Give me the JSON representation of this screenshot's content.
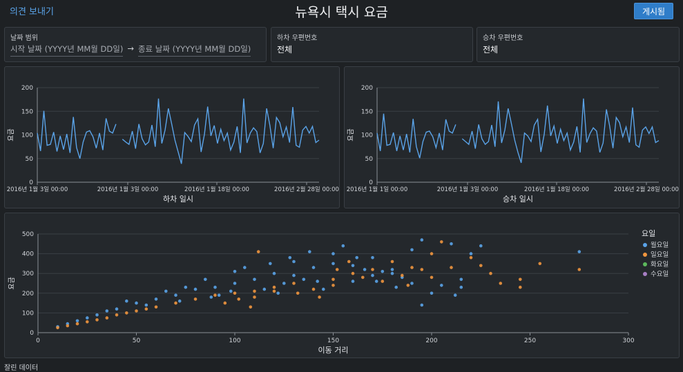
{
  "header": {
    "feedback_link": "의견 보내기",
    "title": "뉴욕시 택시 요금",
    "publish_button": "게시됨"
  },
  "filters": {
    "date_range": {
      "label": "날짜 범위",
      "start_placeholder": "시작 날짜 (YYYY년 MM월 DD일)",
      "arrow": "→",
      "end_placeholder": "종료 날짜 (YYYY년 MM월 DD일)"
    },
    "dropoff_zip": {
      "label": "하차 우편번호",
      "value": "전체"
    },
    "pickup_zip": {
      "label": "승차 우편번호",
      "value": "전체"
    }
  },
  "colors": {
    "line": "#5aa3e8",
    "monday": "#5aa3e8",
    "sunday": "#f0953e",
    "tuesday": "#5cb85c",
    "wednesday": "#a77ec4",
    "background": "#1e2124",
    "panel": "#24282c"
  },
  "chart_data": [
    {
      "type": "line",
      "xlabel": "하차 일시",
      "ylabel": "요금",
      "ylim": [
        0,
        200
      ],
      "yticks": [
        0,
        50,
        100,
        150,
        200
      ],
      "xtick_labels": [
        "2016년 1월 3일 00:00",
        "2016년 1월 3일 00:00",
        "2016년 1월 18일 00:00",
        "2016년 2월 28일 00:00"
      ],
      "grid": true,
      "series": [
        {
          "values": [
            104,
            66,
            151,
            78,
            80,
            106,
            65,
            98,
            69,
            102,
            62,
            138,
            73,
            50,
            85,
            106,
            109,
            96,
            72,
            104,
            68,
            135,
            108,
            104,
            123,
            null,
            91,
            85,
            80,
            108,
            71,
            123,
            92,
            79,
            85,
            121,
            75,
            177,
            82,
            110,
            156,
            124,
            89,
            64,
            39,
            105,
            97,
            86,
            121,
            134,
            64,
            101,
            160,
            98,
            120,
            82,
            112,
            88,
            104,
            68,
            85,
            118,
            62,
            177,
            83,
            104,
            115,
            107,
            62,
            82,
            156,
            120,
            72,
            137,
            126,
            96,
            117,
            84,
            159,
            78,
            74,
            110,
            118,
            104,
            118,
            84,
            89
          ]
        }
      ]
    },
    {
      "type": "line",
      "xlabel": "승차 일시",
      "ylabel": "요금",
      "ylim": [
        0,
        200
      ],
      "yticks": [
        0,
        50,
        100,
        150,
        200
      ],
      "xtick_labels": [
        "2016년 1월 1일 00:00",
        "2016년 1월 3일 00:00",
        "2016년 1월 18일 00:00",
        "2016년 2월 28일 00:00"
      ],
      "grid": true,
      "series": [
        {
          "values": [
            104,
            66,
            145,
            78,
            80,
            105,
            66,
            98,
            68,
            102,
            63,
            134,
            75,
            51,
            86,
            106,
            108,
            96,
            73,
            104,
            68,
            133,
            108,
            104,
            122,
            null,
            92,
            86,
            80,
            108,
            71,
            122,
            92,
            80,
            86,
            121,
            75,
            171,
            83,
            110,
            156,
            124,
            89,
            63,
            41,
            104,
            98,
            86,
            121,
            133,
            64,
            101,
            162,
            98,
            119,
            82,
            112,
            88,
            104,
            68,
            85,
            118,
            63,
            177,
            84,
            103,
            115,
            108,
            63,
            83,
            154,
            119,
            72,
            137,
            126,
            96,
            117,
            84,
            158,
            79,
            74,
            110,
            117,
            103,
            117,
            84,
            88
          ]
        }
      ]
    },
    {
      "type": "scatter",
      "xlabel": "이동 거리",
      "ylabel": "요금",
      "xlim": [
        0,
        300
      ],
      "ylim": [
        0,
        500
      ],
      "xticks": [
        0,
        50,
        100,
        150,
        200,
        250,
        300
      ],
      "yticks": [
        0,
        100,
        200,
        300,
        400,
        500
      ],
      "grid": true,
      "legend": {
        "title": "요일",
        "position": "right"
      },
      "series": [
        {
          "name": "월요일",
          "color": "#5aa3e8",
          "points": [
            [
              10,
              30
            ],
            [
              20,
              60
            ],
            [
              30,
              90
            ],
            [
              40,
              120
            ],
            [
              50,
              150
            ],
            [
              55,
              140
            ],
            [
              60,
              170
            ],
            [
              70,
              190
            ],
            [
              80,
              220
            ],
            [
              90,
              230
            ],
            [
              100,
              250
            ],
            [
              110,
              270
            ],
            [
              120,
              300
            ],
            [
              130,
              290
            ],
            [
              140,
              330
            ],
            [
              150,
              350
            ],
            [
              160,
              340
            ],
            [
              170,
              380
            ],
            [
              180,
              320
            ],
            [
              190,
              420
            ],
            [
              195,
              470
            ],
            [
              210,
              450
            ],
            [
              275,
              410
            ],
            [
              155,
              440
            ],
            [
              150,
              400
            ],
            [
              130,
              360
            ],
            [
              105,
              330
            ],
            [
              100,
              310
            ],
            [
              85,
              270
            ],
            [
              75,
              230
            ],
            [
              65,
              210
            ],
            [
              45,
              160
            ],
            [
              35,
              110
            ],
            [
              25,
              75
            ],
            [
              15,
              45
            ],
            [
              115,
              220
            ],
            [
              125,
              250
            ],
            [
              135,
              270
            ],
            [
              145,
              220
            ],
            [
              160,
              260
            ],
            [
              170,
              290
            ],
            [
              175,
              310
            ],
            [
              180,
              300
            ],
            [
              185,
              280
            ],
            [
              190,
              250
            ],
            [
              200,
              200
            ],
            [
              205,
              240
            ],
            [
              212,
              190
            ],
            [
              215,
              230
            ],
            [
              220,
              400
            ],
            [
              225,
              440
            ],
            [
              215,
              270
            ],
            [
              195,
              140
            ],
            [
              92,
              190
            ],
            [
              98,
              210
            ],
            [
              72,
              160
            ],
            [
              88,
              180
            ],
            [
              122,
              200
            ],
            [
              142,
              260
            ],
            [
              118,
              350
            ],
            [
              128,
              380
            ],
            [
              138,
              410
            ],
            [
              162,
              380
            ],
            [
              166,
              320
            ],
            [
              172,
              260
            ],
            [
              182,
              230
            ]
          ]
        },
        {
          "name": "일요일",
          "color": "#f0953e",
          "points": [
            [
              10,
              25
            ],
            [
              15,
              35
            ],
            [
              20,
              45
            ],
            [
              25,
              55
            ],
            [
              30,
              65
            ],
            [
              35,
              75
            ],
            [
              40,
              90
            ],
            [
              45,
              100
            ],
            [
              50,
              110
            ],
            [
              55,
              120
            ],
            [
              60,
              130
            ],
            [
              70,
              150
            ],
            [
              80,
              170
            ],
            [
              90,
              190
            ],
            [
              100,
              200
            ],
            [
              110,
              210
            ],
            [
              120,
              230
            ],
            [
              130,
              250
            ],
            [
              140,
              220
            ],
            [
              150,
              270
            ],
            [
              160,
              300
            ],
            [
              170,
              320
            ],
            [
              180,
              360
            ],
            [
              185,
              290
            ],
            [
              190,
              330
            ],
            [
              195,
              320
            ],
            [
              200,
              280
            ],
            [
              205,
              460
            ],
            [
              210,
              330
            ],
            [
              220,
              380
            ],
            [
              225,
              340
            ],
            [
              230,
              300
            ],
            [
              235,
              250
            ],
            [
              245,
              270
            ],
            [
              255,
              350
            ],
            [
              275,
              320
            ],
            [
              245,
              230
            ],
            [
              200,
              400
            ],
            [
              150,
              240
            ],
            [
              175,
              260
            ],
            [
              165,
              280
            ],
            [
              110,
              180
            ],
            [
              120,
              210
            ],
            [
              95,
              150
            ],
            [
              102,
              170
            ],
            [
              132,
              200
            ],
            [
              143,
              180
            ],
            [
              152,
              320
            ],
            [
              158,
              360
            ],
            [
              112,
              410
            ],
            [
              108,
              130
            ],
            [
              188,
              240
            ]
          ]
        },
        {
          "name": "화요일",
          "color": "#5cb85c",
          "points": []
        },
        {
          "name": "수요일",
          "color": "#a77ec4",
          "points": []
        }
      ]
    }
  ],
  "footer": {
    "stale_data": "잘린 데이터"
  }
}
